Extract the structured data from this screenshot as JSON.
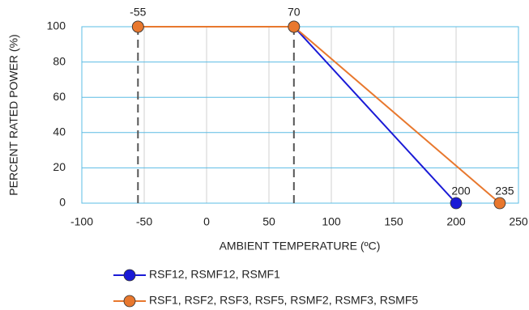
{
  "chart_data": {
    "type": "line",
    "x_label": "AMBIENT TEMPERATURE (ºC)",
    "y_label": "PERCENT RATED POWER (%)",
    "xlim": [
      -100,
      250
    ],
    "xticks": [
      -100,
      -50,
      0,
      50,
      100,
      150,
      200,
      250
    ],
    "ylim": [
      0,
      100
    ],
    "yticks": [
      0,
      20,
      40,
      60,
      80,
      100
    ],
    "grid": true,
    "series": [
      {
        "name": "RSF12, RSMF12, RSMF1",
        "color": "#1a1ad6",
        "x": [
          -55,
          70,
          200
        ],
        "values": [
          100,
          100,
          0
        ]
      },
      {
        "name": "RSF1, RSF2, RSF3, RSF5, RSMF2, RSMF3, RSMF5",
        "color": "#e8782e",
        "x": [
          -55,
          70,
          235
        ],
        "values": [
          100,
          100,
          0
        ]
      }
    ]
  }
}
